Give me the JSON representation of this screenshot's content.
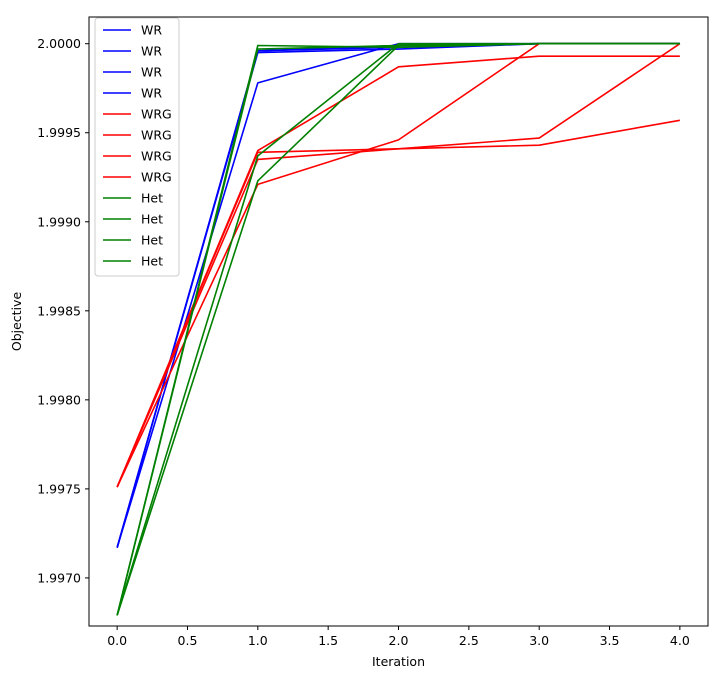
{
  "chart_data": {
    "type": "line",
    "title": "",
    "xlabel": "Iteration",
    "ylabel": "Objective",
    "xlim": [
      -0.2,
      4.2
    ],
    "ylim": [
      1.99673,
      2.00015
    ],
    "xticks": [
      0.0,
      0.5,
      1.0,
      1.5,
      2.0,
      2.5,
      3.0,
      3.5,
      4.0
    ],
    "xtick_labels": [
      "0.0",
      "0.5",
      "1.0",
      "1.5",
      "2.0",
      "2.5",
      "3.0",
      "3.5",
      "4.0"
    ],
    "yticks": [
      1.997,
      1.9975,
      1.998,
      1.9985,
      1.999,
      1.9995,
      2.0
    ],
    "ytick_labels": [
      "1.9970",
      "1.9975",
      "1.9980",
      "1.9985",
      "1.9990",
      "1.9995",
      "2.0000"
    ],
    "grid": false,
    "legend_position": "top-left",
    "x": [
      0,
      1,
      2,
      3,
      4
    ],
    "series": [
      {
        "name": "WR",
        "color": "#0000ff",
        "values": [
          1.99717,
          1.99978,
          2.0,
          2.0,
          2.0
        ]
      },
      {
        "name": "WR",
        "color": "#0000ff",
        "values": [
          1.99717,
          1.99995,
          1.99997,
          2.0,
          2.0
        ]
      },
      {
        "name": "WR",
        "color": "#0000ff",
        "values": [
          1.99717,
          1.99996,
          1.99998,
          2.0,
          2.0
        ]
      },
      {
        "name": "WR",
        "color": "#0000ff",
        "values": [
          1.99717,
          1.99996,
          1.99999,
          2.0,
          2.0
        ]
      },
      {
        "name": "WRG",
        "color": "#ff0000",
        "values": [
          1.99751,
          1.99921,
          1.99946,
          2.0,
          2.0
        ]
      },
      {
        "name": "WRG",
        "color": "#ff0000",
        "values": [
          1.99751,
          1.99935,
          1.99941,
          1.99943,
          1.99957
        ]
      },
      {
        "name": "WRG",
        "color": "#ff0000",
        "values": [
          1.99751,
          1.99939,
          1.99941,
          1.99947,
          2.0
        ]
      },
      {
        "name": "WRG",
        "color": "#ff0000",
        "values": [
          1.99751,
          1.9994,
          1.99987,
          1.99993,
          1.99993
        ]
      },
      {
        "name": "Het",
        "color": "#008000",
        "values": [
          1.99679,
          1.99999,
          1.99998,
          2.0,
          2.0
        ]
      },
      {
        "name": "Het",
        "color": "#008000",
        "values": [
          1.99679,
          1.99997,
          1.99999,
          2.0,
          2.0
        ]
      },
      {
        "name": "Het",
        "color": "#008000",
        "values": [
          1.99679,
          1.99937,
          2.0,
          2.0,
          2.0
        ]
      },
      {
        "name": "Het",
        "color": "#008000",
        "values": [
          1.99679,
          1.99923,
          1.99999,
          2.0,
          2.0
        ]
      }
    ]
  }
}
